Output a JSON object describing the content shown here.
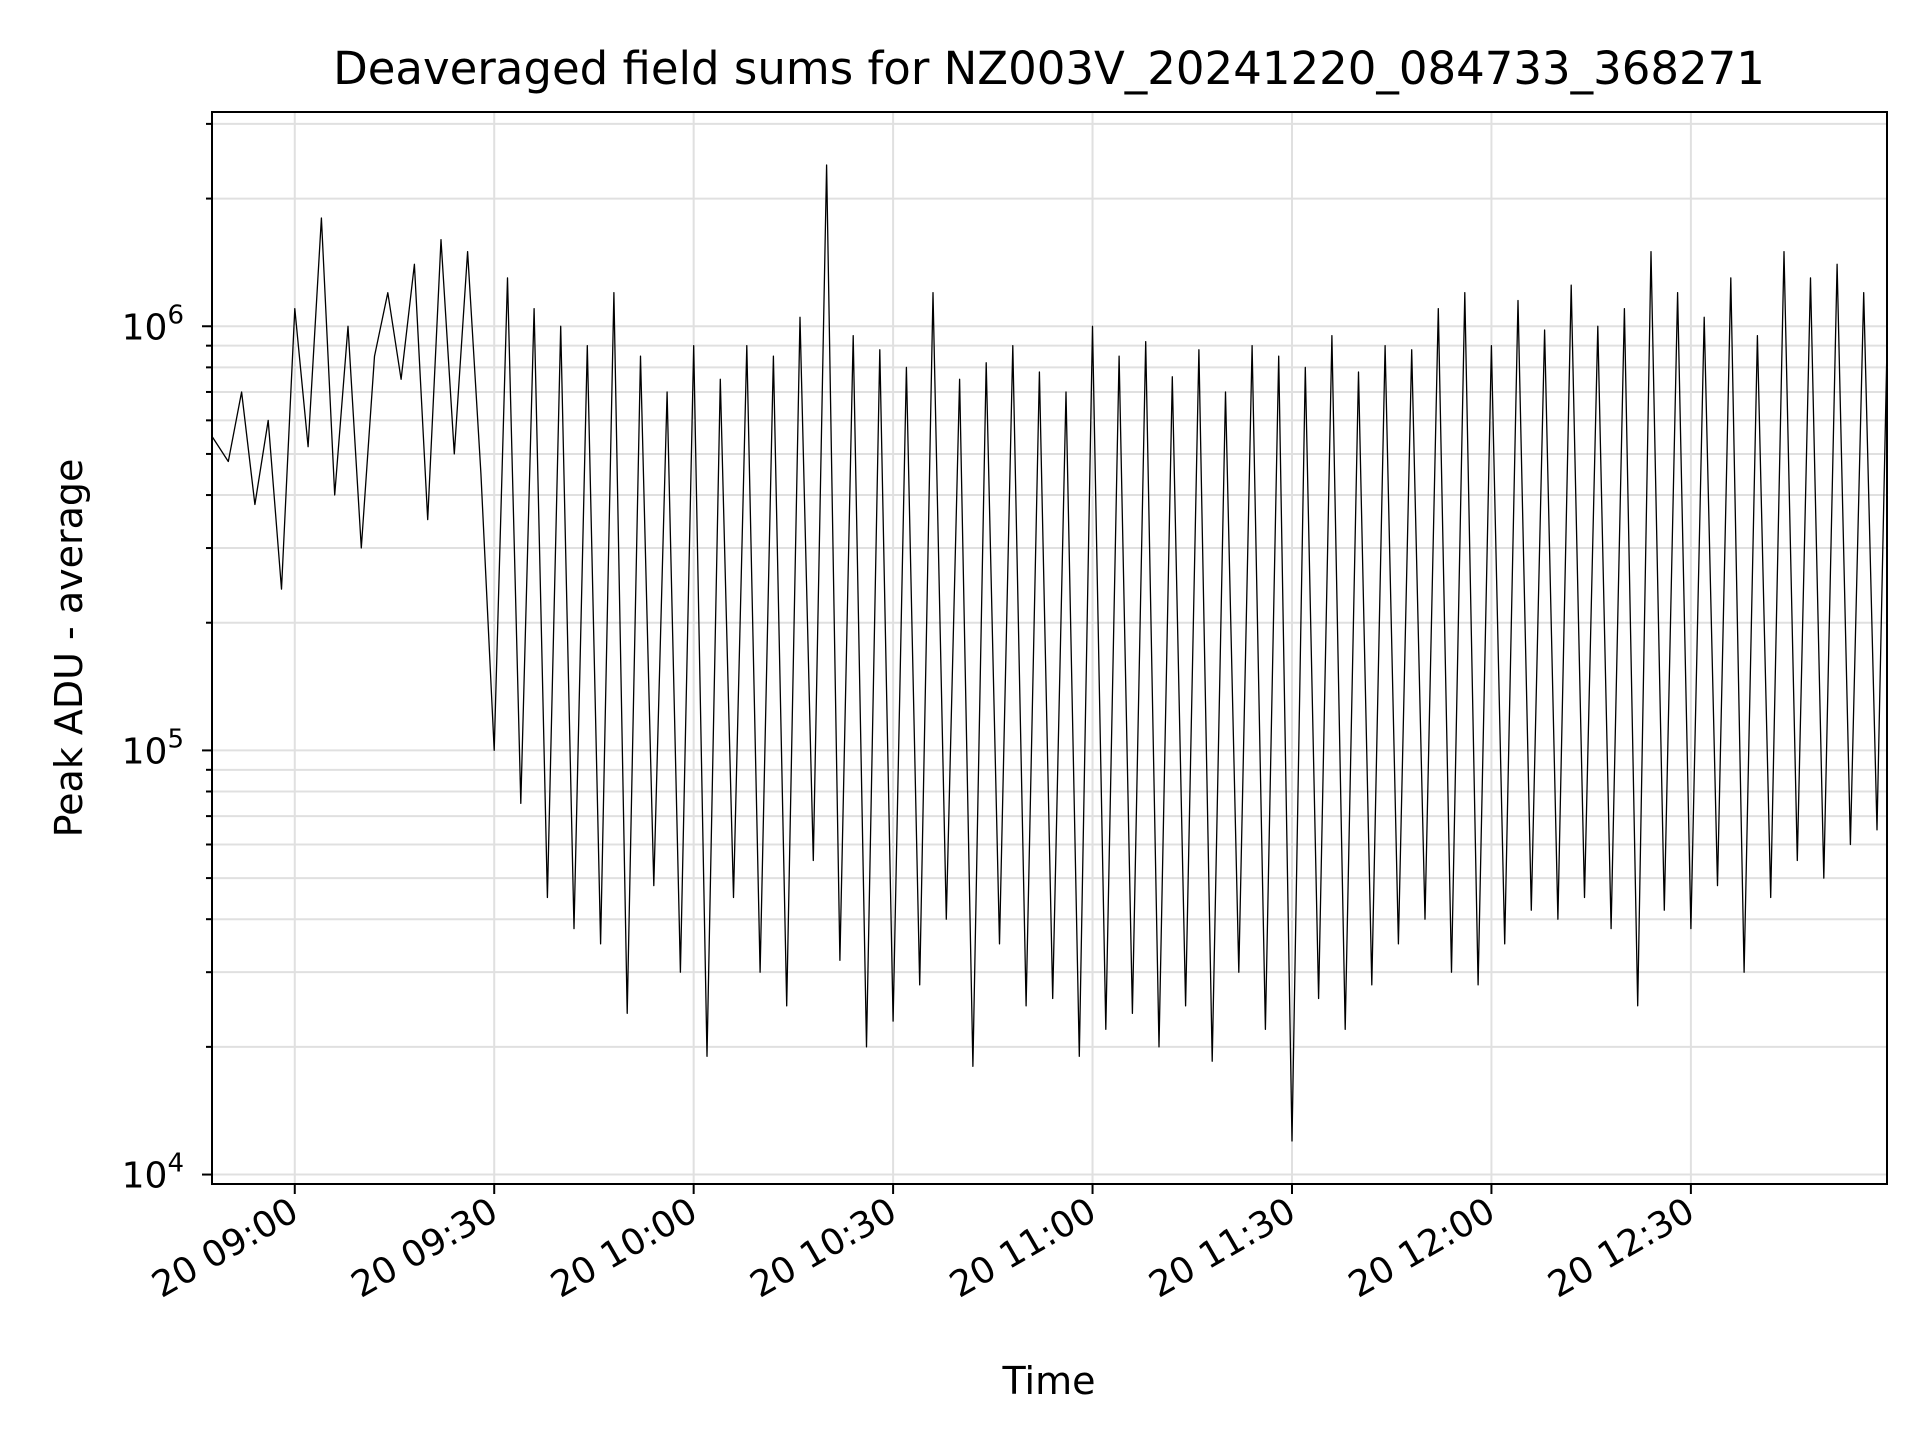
{
  "chart_data": {
    "type": "line",
    "title": "Deaveraged field sums for NZ003V_20241220_084733_368271",
    "xlabel": "Time",
    "ylabel": "Peak ADU - average",
    "y_scale": "log",
    "grid": true,
    "line_color": "#000000",
    "grid_color": "#e0e0e0",
    "xlim": [
      "2024-12-20 08:47:33",
      "2024-12-20 12:59:30"
    ],
    "ylim": [
      9500,
      3200000
    ],
    "x_ticks": [
      {
        "value": "2024-12-20 09:00",
        "label": "20 09:00"
      },
      {
        "value": "2024-12-20 09:30",
        "label": "20 09:30"
      },
      {
        "value": "2024-12-20 10:00",
        "label": "20 10:00"
      },
      {
        "value": "2024-12-20 10:30",
        "label": "20 10:30"
      },
      {
        "value": "2024-12-20 11:00",
        "label": "20 11:00"
      },
      {
        "value": "2024-12-20 11:30",
        "label": "20 11:30"
      },
      {
        "value": "2024-12-20 12:00",
        "label": "20 12:00"
      },
      {
        "value": "2024-12-20 12:30",
        "label": "20 12:30"
      }
    ],
    "y_ticks": [
      {
        "value": 10000,
        "base": "10",
        "exp": "4"
      },
      {
        "value": 100000,
        "base": "10",
        "exp": "5"
      },
      {
        "value": 1000000,
        "base": "10",
        "exp": "6"
      }
    ],
    "series": [
      {
        "x": [
          "2024-12-20 08:47:33",
          "2024-12-20 08:50:00",
          "2024-12-20 08:52:00",
          "2024-12-20 08:54:00",
          "2024-12-20 08:56:00",
          "2024-12-20 08:58:00",
          "2024-12-20 09:00:00",
          "2024-12-20 09:02:00",
          "2024-12-20 09:04:00",
          "2024-12-20 09:06:00",
          "2024-12-20 09:08:00",
          "2024-12-20 09:10:00",
          "2024-12-20 09:12:00",
          "2024-12-20 09:14:00",
          "2024-12-20 09:16:00",
          "2024-12-20 09:18:00",
          "2024-12-20 09:20:00",
          "2024-12-20 09:22:00",
          "2024-12-20 09:24:00",
          "2024-12-20 09:26:00",
          "2024-12-20 09:28:00",
          "2024-12-20 09:30:00",
          "2024-12-20 09:32:00",
          "2024-12-20 09:34:00",
          "2024-12-20 09:36:00",
          "2024-12-20 09:38:00",
          "2024-12-20 09:40:00",
          "2024-12-20 09:42:00",
          "2024-12-20 09:44:00",
          "2024-12-20 09:46:00",
          "2024-12-20 09:48:00",
          "2024-12-20 09:50:00",
          "2024-12-20 09:52:00",
          "2024-12-20 09:54:00",
          "2024-12-20 09:56:00",
          "2024-12-20 09:58:00",
          "2024-12-20 10:00:00",
          "2024-12-20 10:02:00",
          "2024-12-20 10:04:00",
          "2024-12-20 10:06:00",
          "2024-12-20 10:08:00",
          "2024-12-20 10:10:00",
          "2024-12-20 10:12:00",
          "2024-12-20 10:14:00",
          "2024-12-20 10:16:00",
          "2024-12-20 10:18:00",
          "2024-12-20 10:20:00",
          "2024-12-20 10:22:00",
          "2024-12-20 10:24:00",
          "2024-12-20 10:26:00",
          "2024-12-20 10:28:00",
          "2024-12-20 10:30:00",
          "2024-12-20 10:32:00",
          "2024-12-20 10:34:00",
          "2024-12-20 10:36:00",
          "2024-12-20 10:38:00",
          "2024-12-20 10:40:00",
          "2024-12-20 10:42:00",
          "2024-12-20 10:44:00",
          "2024-12-20 10:46:00",
          "2024-12-20 10:48:00",
          "2024-12-20 10:50:00",
          "2024-12-20 10:52:00",
          "2024-12-20 10:54:00",
          "2024-12-20 10:56:00",
          "2024-12-20 10:58:00",
          "2024-12-20 11:00:00",
          "2024-12-20 11:02:00",
          "2024-12-20 11:04:00",
          "2024-12-20 11:06:00",
          "2024-12-20 11:08:00",
          "2024-12-20 11:10:00",
          "2024-12-20 11:12:00",
          "2024-12-20 11:14:00",
          "2024-12-20 11:16:00",
          "2024-12-20 11:18:00",
          "2024-12-20 11:20:00",
          "2024-12-20 11:22:00",
          "2024-12-20 11:24:00",
          "2024-12-20 11:26:00",
          "2024-12-20 11:28:00",
          "2024-12-20 11:30:00",
          "2024-12-20 11:32:00",
          "2024-12-20 11:34:00",
          "2024-12-20 11:36:00",
          "2024-12-20 11:38:00",
          "2024-12-20 11:40:00",
          "2024-12-20 11:42:00",
          "2024-12-20 11:44:00",
          "2024-12-20 11:46:00",
          "2024-12-20 11:48:00",
          "2024-12-20 11:50:00",
          "2024-12-20 11:52:00",
          "2024-12-20 11:54:00",
          "2024-12-20 11:56:00",
          "2024-12-20 11:58:00",
          "2024-12-20 12:00:00",
          "2024-12-20 12:02:00",
          "2024-12-20 12:04:00",
          "2024-12-20 12:06:00",
          "2024-12-20 12:08:00",
          "2024-12-20 12:10:00",
          "2024-12-20 12:12:00",
          "2024-12-20 12:14:00",
          "2024-12-20 12:16:00",
          "2024-12-20 12:18:00",
          "2024-12-20 12:20:00",
          "2024-12-20 12:22:00",
          "2024-12-20 12:24:00",
          "2024-12-20 12:26:00",
          "2024-12-20 12:28:00",
          "2024-12-20 12:30:00",
          "2024-12-20 12:32:00",
          "2024-12-20 12:34:00",
          "2024-12-20 12:36:00",
          "2024-12-20 12:38:00",
          "2024-12-20 12:40:00",
          "2024-12-20 12:42:00",
          "2024-12-20 12:44:00",
          "2024-12-20 12:46:00",
          "2024-12-20 12:48:00",
          "2024-12-20 12:50:00",
          "2024-12-20 12:52:00",
          "2024-12-20 12:54:00",
          "2024-12-20 12:56:00",
          "2024-12-20 12:58:00",
          "2024-12-20 12:59:30"
        ],
        "y": [
          550000,
          480000,
          700000,
          380000,
          600000,
          240000,
          1100000,
          520000,
          1800000,
          400000,
          1000000,
          300000,
          850000,
          1200000,
          750000,
          1400000,
          350000,
          1600000,
          500000,
          1500000,
          450000,
          100000,
          1300000,
          75000,
          1100000,
          45000,
          1000000,
          38000,
          900000,
          35000,
          1200000,
          24000,
          850000,
          48000,
          700000,
          30000,
          900000,
          19000,
          750000,
          45000,
          900000,
          30000,
          850000,
          25000,
          1050000,
          55000,
          2400000,
          32000,
          950000,
          20000,
          880000,
          23000,
          800000,
          28000,
          1200000,
          40000,
          750000,
          18000,
          820000,
          35000,
          900000,
          25000,
          780000,
          26000,
          700000,
          19000,
          1000000,
          22000,
          850000,
          24000,
          920000,
          20000,
          760000,
          25000,
          880000,
          18500,
          700000,
          30000,
          900000,
          22000,
          850000,
          12000,
          800000,
          26000,
          950000,
          22000,
          780000,
          28000,
          900000,
          35000,
          880000,
          40000,
          1100000,
          30000,
          1200000,
          28000,
          900000,
          35000,
          1150000,
          42000,
          980000,
          40000,
          1250000,
          45000,
          1000000,
          38000,
          1100000,
          25000,
          1500000,
          42000,
          1200000,
          38000,
          1050000,
          48000,
          1300000,
          30000,
          950000,
          45000,
          1500000,
          55000,
          1300000,
          50000,
          1400000,
          60000,
          1200000,
          65000,
          900000
        ]
      }
    ]
  }
}
